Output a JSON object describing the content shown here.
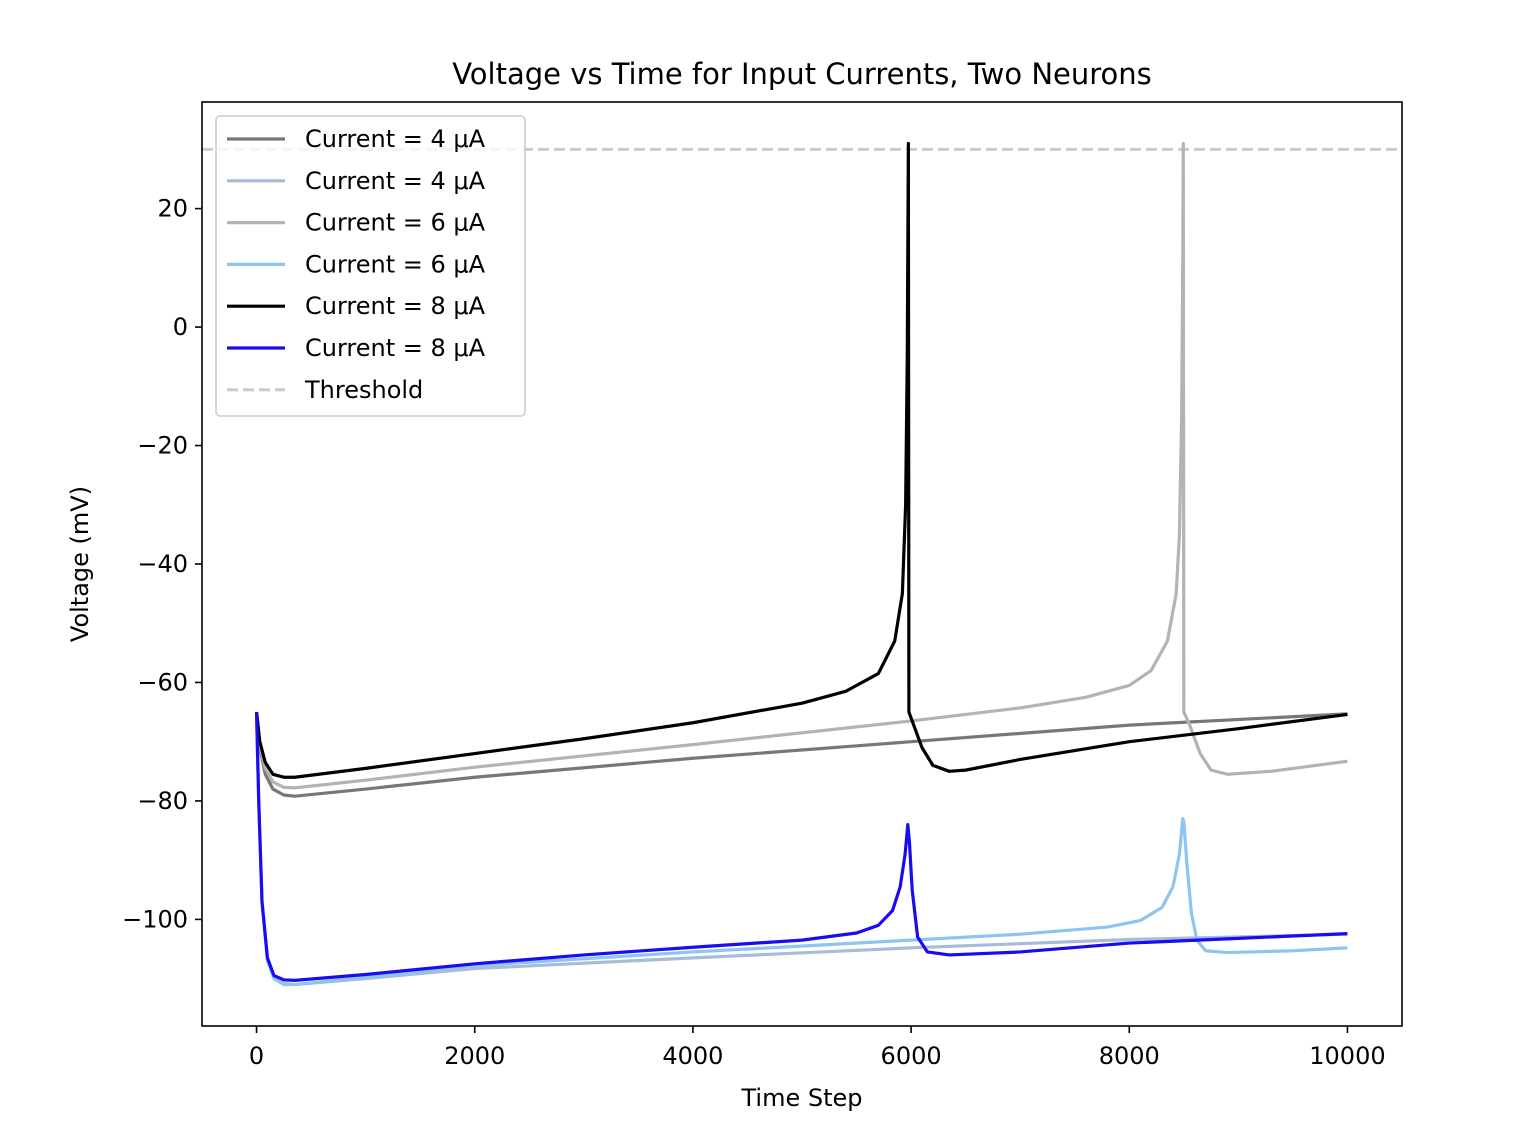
{
  "chart_data": {
    "type": "line",
    "title": "Voltage vs Time for Input Currents, Two Neurons",
    "xlabel": "Time Step",
    "ylabel": "Voltage (mV)",
    "xlim": [
      -500,
      10500
    ],
    "ylim": [
      -118,
      38
    ],
    "xticks": [
      0,
      2000,
      4000,
      6000,
      8000,
      10000
    ],
    "xtick_labels": [
      "0",
      "2000",
      "4000",
      "6000",
      "8000",
      "10000"
    ],
    "yticks": [
      -100,
      -80,
      -60,
      -40,
      -20,
      0,
      20
    ],
    "ytick_labels": [
      "−100",
      "−80",
      "−60",
      "−40",
      "−20",
      "0",
      "20"
    ],
    "grid": false,
    "legend_position": "upper-left",
    "threshold": {
      "name": "Threshold",
      "value": 30,
      "color": "#cccccc",
      "style": "dashed"
    },
    "series": [
      {
        "name": "Current = 4 μA",
        "color": "#777777",
        "points": [
          [
            0,
            -65
          ],
          [
            30,
            -71
          ],
          [
            80,
            -75.5
          ],
          [
            150,
            -78
          ],
          [
            250,
            -79
          ],
          [
            350,
            -79.2
          ],
          [
            1000,
            -78
          ],
          [
            2000,
            -76
          ],
          [
            4000,
            -72.8
          ],
          [
            6000,
            -70
          ],
          [
            8000,
            -67.2
          ],
          [
            10000,
            -65.3
          ]
        ]
      },
      {
        "name": "Current = 4 μA",
        "color": "#a8bbd8",
        "points": [
          [
            0,
            -65
          ],
          [
            20,
            -80
          ],
          [
            50,
            -97
          ],
          [
            100,
            -107
          ],
          [
            160,
            -110
          ],
          [
            250,
            -111
          ],
          [
            350,
            -111
          ],
          [
            1000,
            -110
          ],
          [
            2000,
            -108.3
          ],
          [
            4000,
            -106.5
          ],
          [
            6000,
            -104.8
          ],
          [
            8000,
            -103.4
          ],
          [
            10000,
            -102.5
          ]
        ]
      },
      {
        "name": "Current = 6 μA",
        "color": "#b3b3b3",
        "points": [
          [
            0,
            -65
          ],
          [
            30,
            -70.5
          ],
          [
            80,
            -74.5
          ],
          [
            150,
            -76.8
          ],
          [
            250,
            -77.7
          ],
          [
            350,
            -77.8
          ],
          [
            1000,
            -76.5
          ],
          [
            2000,
            -74.3
          ],
          [
            4000,
            -70.5
          ],
          [
            6000,
            -66.5
          ],
          [
            7000,
            -64.3
          ],
          [
            7600,
            -62.5
          ],
          [
            8000,
            -60.5
          ],
          [
            8200,
            -58
          ],
          [
            8350,
            -53
          ],
          [
            8430,
            -45
          ],
          [
            8460,
            -35
          ],
          [
            8480,
            -15
          ],
          [
            8490,
            10
          ],
          [
            8495,
            31
          ],
          [
            8500,
            -65
          ],
          [
            8550,
            -67
          ],
          [
            8650,
            -72
          ],
          [
            8750,
            -74.8
          ],
          [
            8900,
            -75.5
          ],
          [
            9300,
            -75
          ],
          [
            10000,
            -73.3
          ]
        ]
      },
      {
        "name": "Current = 6 μA",
        "color": "#8ec4f2",
        "points": [
          [
            0,
            -65
          ],
          [
            20,
            -80
          ],
          [
            50,
            -97
          ],
          [
            100,
            -107
          ],
          [
            160,
            -110
          ],
          [
            250,
            -110.8
          ],
          [
            350,
            -111
          ],
          [
            1000,
            -109.8
          ],
          [
            2000,
            -107.8
          ],
          [
            4000,
            -105.5
          ],
          [
            6000,
            -103.5
          ],
          [
            7000,
            -102.5
          ],
          [
            7800,
            -101.3
          ],
          [
            8100,
            -100.2
          ],
          [
            8300,
            -98
          ],
          [
            8400,
            -94.5
          ],
          [
            8460,
            -89
          ],
          [
            8490,
            -83
          ],
          [
            8500,
            -83.5
          ],
          [
            8530,
            -91
          ],
          [
            8570,
            -99
          ],
          [
            8620,
            -103.5
          ],
          [
            8700,
            -105.3
          ],
          [
            8900,
            -105.6
          ],
          [
            9500,
            -105.3
          ],
          [
            10000,
            -104.8
          ]
        ]
      },
      {
        "name": "Current = 8 μA",
        "color": "#000000",
        "points": [
          [
            0,
            -65
          ],
          [
            30,
            -70
          ],
          [
            80,
            -73.5
          ],
          [
            150,
            -75.5
          ],
          [
            250,
            -76
          ],
          [
            350,
            -76
          ],
          [
            1000,
            -74.5
          ],
          [
            2000,
            -72
          ],
          [
            3000,
            -69.5
          ],
          [
            4000,
            -66.8
          ],
          [
            5000,
            -63.5
          ],
          [
            5400,
            -61.5
          ],
          [
            5700,
            -58.5
          ],
          [
            5850,
            -53
          ],
          [
            5920,
            -45
          ],
          [
            5950,
            -30
          ],
          [
            5965,
            -5
          ],
          [
            5975,
            31
          ],
          [
            5980,
            -65
          ],
          [
            6030,
            -67.5
          ],
          [
            6100,
            -71
          ],
          [
            6200,
            -74
          ],
          [
            6350,
            -75
          ],
          [
            6500,
            -74.8
          ],
          [
            7000,
            -73
          ],
          [
            8000,
            -70
          ],
          [
            9000,
            -67.8
          ],
          [
            10000,
            -65.4
          ]
        ]
      },
      {
        "name": "Current = 8 μA",
        "color": "#1a0cf2",
        "points": [
          [
            0,
            -65
          ],
          [
            20,
            -80
          ],
          [
            50,
            -97
          ],
          [
            100,
            -106.5
          ],
          [
            160,
            -109.5
          ],
          [
            250,
            -110.2
          ],
          [
            350,
            -110.3
          ],
          [
            1000,
            -109.3
          ],
          [
            2000,
            -107.5
          ],
          [
            3000,
            -106
          ],
          [
            4000,
            -104.7
          ],
          [
            5000,
            -103.5
          ],
          [
            5500,
            -102.3
          ],
          [
            5700,
            -101
          ],
          [
            5830,
            -98.5
          ],
          [
            5900,
            -94.5
          ],
          [
            5945,
            -89
          ],
          [
            5970,
            -84
          ],
          [
            5985,
            -87
          ],
          [
            6010,
            -95
          ],
          [
            6060,
            -103
          ],
          [
            6150,
            -105.5
          ],
          [
            6350,
            -106
          ],
          [
            7000,
            -105.5
          ],
          [
            8000,
            -104
          ],
          [
            9000,
            -103.2
          ],
          [
            10000,
            -102.4
          ]
        ]
      }
    ]
  }
}
